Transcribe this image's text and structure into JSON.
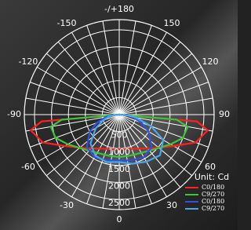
{
  "chart_data": {
    "type": "polar",
    "rlim": [
      0,
      2800
    ],
    "rticks": [
      500,
      1000,
      1500,
      2000,
      2500
    ],
    "angle_ticks": [
      {
        "value": 180,
        "label": "-/+180"
      },
      -150,
      150,
      -120,
      120,
      -90,
      90,
      -60,
      60,
      -30,
      30,
      0
    ],
    "theta": [
      -90,
      -85,
      -80,
      -70,
      -60,
      -45,
      -30,
      -15,
      0,
      15,
      30,
      45,
      60,
      70,
      80,
      85,
      90
    ],
    "unit_label": "Unit: Cd",
    "series": [
      {
        "name": "C0/180",
        "color": "#ff2020",
        "values": [
          0,
          2300,
          2650,
          2400,
          1850,
          1400,
          1160,
          1050,
          1020,
          1050,
          1160,
          1400,
          1850,
          2400,
          2650,
          2300,
          0
        ]
      },
      {
        "name": "C9/270",
        "color": "#3cc43c",
        "values": [
          0,
          1700,
          2050,
          2000,
          1750,
          1450,
          1300,
          1250,
          1250,
          1250,
          1300,
          1450,
          1750,
          2000,
          2050,
          1700,
          0
        ]
      },
      {
        "name": "C0/180",
        "color": "#3050e0",
        "values": [
          0,
          200,
          400,
          700,
          1000,
          1350,
          1450,
          1400,
          1350,
          1400,
          1450,
          1350,
          1000,
          700,
          400,
          200,
          0
        ]
      },
      {
        "name": "C9/270",
        "color": "#4aa8e8",
        "values": [
          0,
          150,
          300,
          500,
          800,
          1200,
          1400,
          1450,
          1400,
          1500,
          1600,
          1700,
          1500,
          1000,
          500,
          250,
          0
        ]
      }
    ]
  }
}
